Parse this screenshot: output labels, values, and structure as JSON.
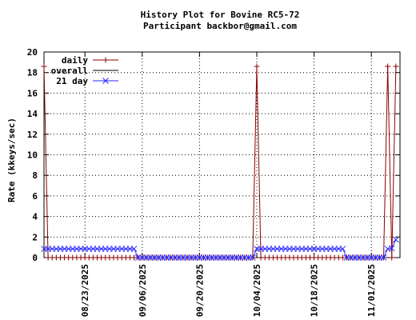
{
  "chart_data": {
    "type": "line",
    "title": "History Plot for Bovine RC5-72",
    "subtitle": "Participant backbor@gmail.com",
    "y_label": "Rate (kkeys/sec)",
    "x": [
      "08/13/2025",
      "08/14/2025",
      "08/15/2025",
      "08/16/2025",
      "08/17/2025",
      "08/18/2025",
      "08/19/2025",
      "08/20/2025",
      "08/21/2025",
      "08/22/2025",
      "08/23/2025",
      "08/24/2025",
      "08/25/2025",
      "08/26/2025",
      "08/27/2025",
      "08/28/2025",
      "08/29/2025",
      "08/30/2025",
      "08/31/2025",
      "09/01/2025",
      "09/02/2025",
      "09/03/2025",
      "09/04/2025",
      "09/05/2025",
      "09/06/2025",
      "09/07/2025",
      "09/08/2025",
      "09/09/2025",
      "09/10/2025",
      "09/11/2025",
      "09/12/2025",
      "09/13/2025",
      "09/14/2025",
      "09/15/2025",
      "09/16/2025",
      "09/17/2025",
      "09/18/2025",
      "09/19/2025",
      "09/20/2025",
      "09/21/2025",
      "09/22/2025",
      "09/23/2025",
      "09/24/2025",
      "09/25/2025",
      "09/26/2025",
      "09/27/2025",
      "09/28/2025",
      "09/29/2025",
      "09/30/2025",
      "10/01/2025",
      "10/02/2025",
      "10/03/2025",
      "10/04/2025",
      "10/05/2025",
      "10/06/2025",
      "10/07/2025",
      "10/08/2025",
      "10/09/2025",
      "10/10/2025",
      "10/11/2025",
      "10/12/2025",
      "10/13/2025",
      "10/14/2025",
      "10/15/2025",
      "10/16/2025",
      "10/17/2025",
      "10/18/2025",
      "10/19/2025",
      "10/20/2025",
      "10/21/2025",
      "10/22/2025",
      "10/23/2025",
      "10/24/2025",
      "10/25/2025",
      "10/26/2025",
      "10/27/2025",
      "10/28/2025",
      "10/29/2025",
      "10/30/2025",
      "10/31/2025",
      "11/01/2025",
      "11/02/2025",
      "11/03/2025",
      "11/04/2025",
      "11/05/2025",
      "11/06/2025",
      "11/07/2025"
    ],
    "series": [
      {
        "name": "daily",
        "color": "#8b0000",
        "marker": "plus",
        "values": [
          18.6,
          0,
          0,
          0,
          0,
          0,
          0,
          0,
          0,
          0,
          0,
          0,
          0,
          0,
          0,
          0,
          0,
          0,
          0,
          0,
          0,
          0,
          0,
          0,
          0,
          0,
          0,
          0,
          0,
          0,
          0,
          0,
          0,
          0,
          0,
          0,
          0,
          0,
          0,
          0,
          0,
          0,
          0,
          0,
          0,
          0,
          0,
          0,
          0,
          0,
          0,
          0,
          18.6,
          0,
          0,
          0,
          0,
          0,
          0,
          0,
          0,
          0,
          0,
          0,
          0,
          0,
          0,
          0,
          0,
          0,
          0,
          0,
          0,
          0,
          0,
          0,
          0,
          0,
          0,
          0,
          0,
          0,
          0,
          0,
          18.6,
          0,
          18.6
        ]
      },
      {
        "name": "overall",
        "color": "#000000",
        "marker": "none",
        "values": [
          null,
          null,
          null,
          null,
          null,
          null,
          null,
          null,
          null,
          null,
          null,
          null,
          null,
          null,
          null,
          null,
          null,
          null,
          null,
          null,
          null,
          null,
          null,
          null,
          null,
          null,
          null,
          null,
          null,
          null,
          null,
          null,
          null,
          null,
          null,
          null,
          null,
          null,
          null,
          null,
          null,
          null,
          null,
          null,
          null,
          null,
          null,
          null,
          null,
          null,
          null,
          null,
          null,
          null,
          null,
          null,
          null,
          null,
          null,
          null,
          null,
          null,
          null,
          null,
          null,
          null,
          null,
          null,
          null,
          null,
          null,
          null,
          null,
          null,
          null,
          null,
          null,
          null,
          null,
          null,
          null,
          null,
          null,
          null,
          null,
          null,
          null
        ]
      },
      {
        "name": "21 day",
        "color": "#2a2aff",
        "marker": "cross",
        "values": [
          0.85,
          0.85,
          0.85,
          0.85,
          0.85,
          0.85,
          0.85,
          0.85,
          0.85,
          0.85,
          0.85,
          0.85,
          0.85,
          0.85,
          0.85,
          0.85,
          0.85,
          0.85,
          0.85,
          0.85,
          0.85,
          0.85,
          0.85,
          0,
          0,
          0,
          0,
          0,
          0,
          0,
          0,
          0,
          0,
          0,
          0,
          0,
          0,
          0,
          0,
          0,
          0,
          0,
          0,
          0,
          0,
          0,
          0,
          0,
          0,
          0,
          0,
          0,
          0.85,
          0.85,
          0.85,
          0.85,
          0.85,
          0.85,
          0.85,
          0.85,
          0.85,
          0.85,
          0.85,
          0.85,
          0.85,
          0.85,
          0.85,
          0.85,
          0.85,
          0.85,
          0.85,
          0.85,
          0.85,
          0.85,
          0,
          0,
          0,
          0,
          0,
          0,
          0,
          0,
          0,
          0,
          0.85,
          0.9,
          1.75
        ]
      }
    ],
    "xlim": [
      "08/13/2025",
      "11/08/2025"
    ],
    "xticks": [
      "08/23/2025",
      "09/06/2025",
      "09/20/2025",
      "10/04/2025",
      "10/18/2025",
      "11/01/2025"
    ],
    "ylim": [
      0,
      20
    ],
    "yticks": [
      0,
      2,
      4,
      6,
      8,
      10,
      12,
      14,
      16,
      18,
      20
    ],
    "grid": true,
    "legend": "top-left"
  }
}
